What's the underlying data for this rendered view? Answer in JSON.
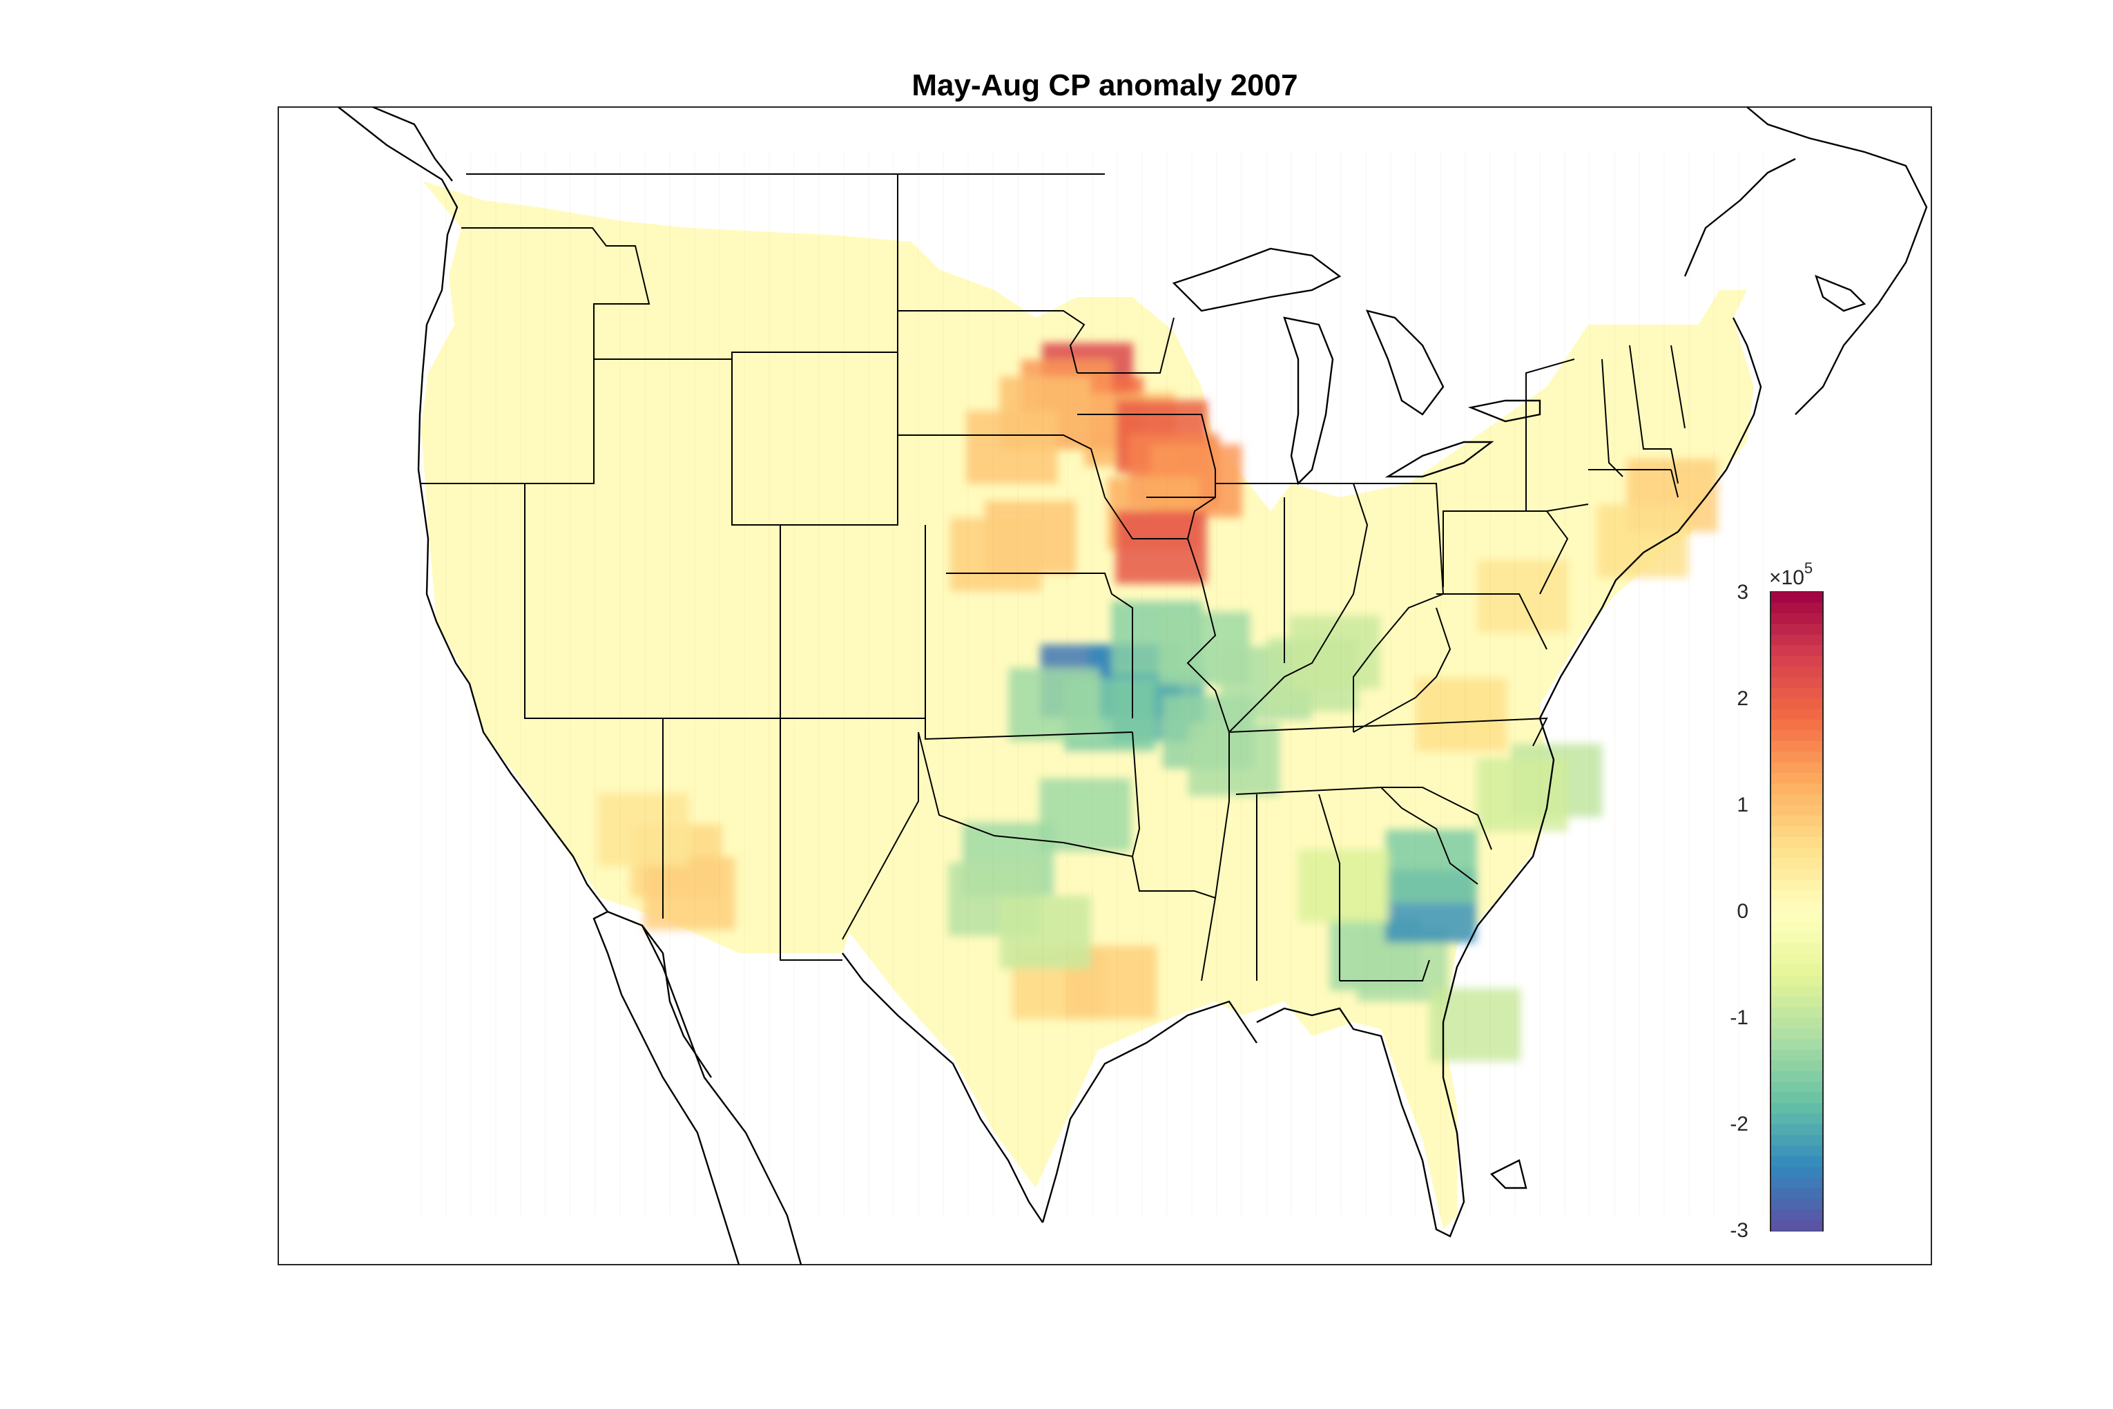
{
  "title": "May-Aug CP anomaly 2007",
  "colorbar": {
    "min": -3,
    "max": 3,
    "ticks": [
      "3",
      "2",
      "1",
      "0",
      "-1",
      "-2",
      "-3"
    ],
    "exponent_base": "×10",
    "exponent_power": "5",
    "colormap": [
      "#5e4fa2",
      "#3288bd",
      "#66c2a5",
      "#abdda4",
      "#e6f598",
      "#ffffbf",
      "#fee08b",
      "#fdae61",
      "#f46d43",
      "#d53e4f",
      "#9e0142"
    ]
  },
  "map": {
    "region": "Contiguous United States",
    "anomaly_cells": [
      {
        "lon": -96.5,
        "lat": 47.5,
        "value": 2.3
      },
      {
        "lon": -96.0,
        "lat": 46.5,
        "value": 1.8
      },
      {
        "lon": -97.5,
        "lat": 47.0,
        "value": 1.4
      },
      {
        "lon": -98.5,
        "lat": 46.5,
        "value": 1.0
      },
      {
        "lon": -100.0,
        "lat": 45.5,
        "value": 0.9
      },
      {
        "lon": -94.5,
        "lat": 46.0,
        "value": 1.1
      },
      {
        "lon": -93.0,
        "lat": 45.8,
        "value": 2.0
      },
      {
        "lon": -92.5,
        "lat": 44.8,
        "value": 1.6
      },
      {
        "lon": -91.5,
        "lat": 44.5,
        "value": 1.4
      },
      {
        "lon": -93.5,
        "lat": 43.5,
        "value": 1.2
      },
      {
        "lon": -93.2,
        "lat": 42.5,
        "value": 2.1
      },
      {
        "lon": -99.0,
        "lat": 42.8,
        "value": 0.9
      },
      {
        "lon": -100.5,
        "lat": 42.3,
        "value": 0.8
      },
      {
        "lon": -69.5,
        "lat": 45.0,
        "value": 0.8
      },
      {
        "lon": -71.5,
        "lat": 43.5,
        "value": 0.6
      },
      {
        "lon": -77.5,
        "lat": 41.5,
        "value": 0.5
      },
      {
        "lon": -81.0,
        "lat": 37.8,
        "value": 0.6
      },
      {
        "lon": -112.5,
        "lat": 33.5,
        "value": 0.7
      },
      {
        "lon": -111.8,
        "lat": 32.5,
        "value": 0.8
      },
      {
        "lon": -114.0,
        "lat": 34.5,
        "value": 0.5
      },
      {
        "lon": -97.5,
        "lat": 29.5,
        "value": 0.7
      },
      {
        "lon": -95.5,
        "lat": 29.5,
        "value": 0.8
      },
      {
        "lon": -96.5,
        "lat": 38.5,
        "value": -2.6
      },
      {
        "lon": -94.5,
        "lat": 38.5,
        "value": -2.4
      },
      {
        "lon": -93.5,
        "lat": 37.8,
        "value": -2.0
      },
      {
        "lon": -95.5,
        "lat": 37.5,
        "value": -1.6
      },
      {
        "lon": -97.8,
        "lat": 37.8,
        "value": -1.3
      },
      {
        "lon": -93.5,
        "lat": 39.8,
        "value": -1.5
      },
      {
        "lon": -91.5,
        "lat": 39.5,
        "value": -1.3
      },
      {
        "lon": -91.5,
        "lat": 37.0,
        "value": -1.4
      },
      {
        "lon": -90.5,
        "lat": 36.2,
        "value": -1.2
      },
      {
        "lon": -89.0,
        "lat": 38.5,
        "value": -1.2
      },
      {
        "lon": -87.0,
        "lat": 38.8,
        "value": -1.0
      },
      {
        "lon": -86.0,
        "lat": 39.5,
        "value": -0.9
      },
      {
        "lon": -96.5,
        "lat": 34.5,
        "value": -1.3
      },
      {
        "lon": -99.5,
        "lat": 33.2,
        "value": -1.3
      },
      {
        "lon": -100.0,
        "lat": 32.0,
        "value": -1.1
      },
      {
        "lon": -98.0,
        "lat": 31.0,
        "value": -0.9
      },
      {
        "lon": -85.5,
        "lat": 30.5,
        "value": -1.3
      },
      {
        "lon": -84.5,
        "lat": 30.2,
        "value": -1.2
      },
      {
        "lon": -83.2,
        "lat": 32.0,
        "value": -2.3
      },
      {
        "lon": -83.0,
        "lat": 33.2,
        "value": -1.6
      },
      {
        "lon": -82.0,
        "lat": 28.5,
        "value": -0.9
      },
      {
        "lon": -77.5,
        "lat": 36.0,
        "value": -1.0
      },
      {
        "lon": -79.0,
        "lat": 35.5,
        "value": -0.8
      },
      {
        "lon": -86.5,
        "lat": 32.5,
        "value": -0.7
      }
    ]
  }
}
